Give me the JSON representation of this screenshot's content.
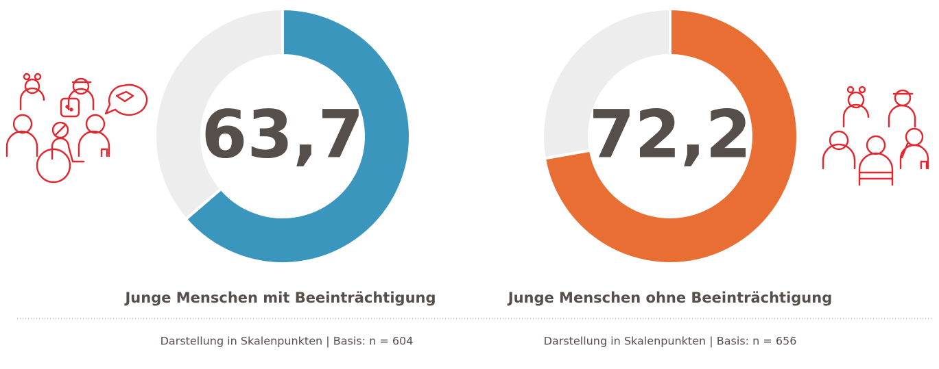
{
  "chart_data": [
    {
      "type": "donut",
      "title": "Junge Menschen mit Beeinträchtigung",
      "values": [
        63.7
      ],
      "value_labels": [
        "63,7"
      ],
      "color": "#3a96bc",
      "track_color": "#ededed",
      "ylim": [
        0,
        100
      ],
      "note": "Darstellung in Skalenpunkten | Basis: n = 604"
    },
    {
      "type": "donut",
      "title": "Junge Menschen ohne Beeinträchtigung",
      "values": [
        72.2
      ],
      "value_labels": [
        "72,2"
      ],
      "color": "#e86e33",
      "track_color": "#ededed",
      "ylim": [
        0,
        100
      ],
      "note": "Darstellung in Skalenpunkten | Basis: n = 656"
    }
  ]
}
